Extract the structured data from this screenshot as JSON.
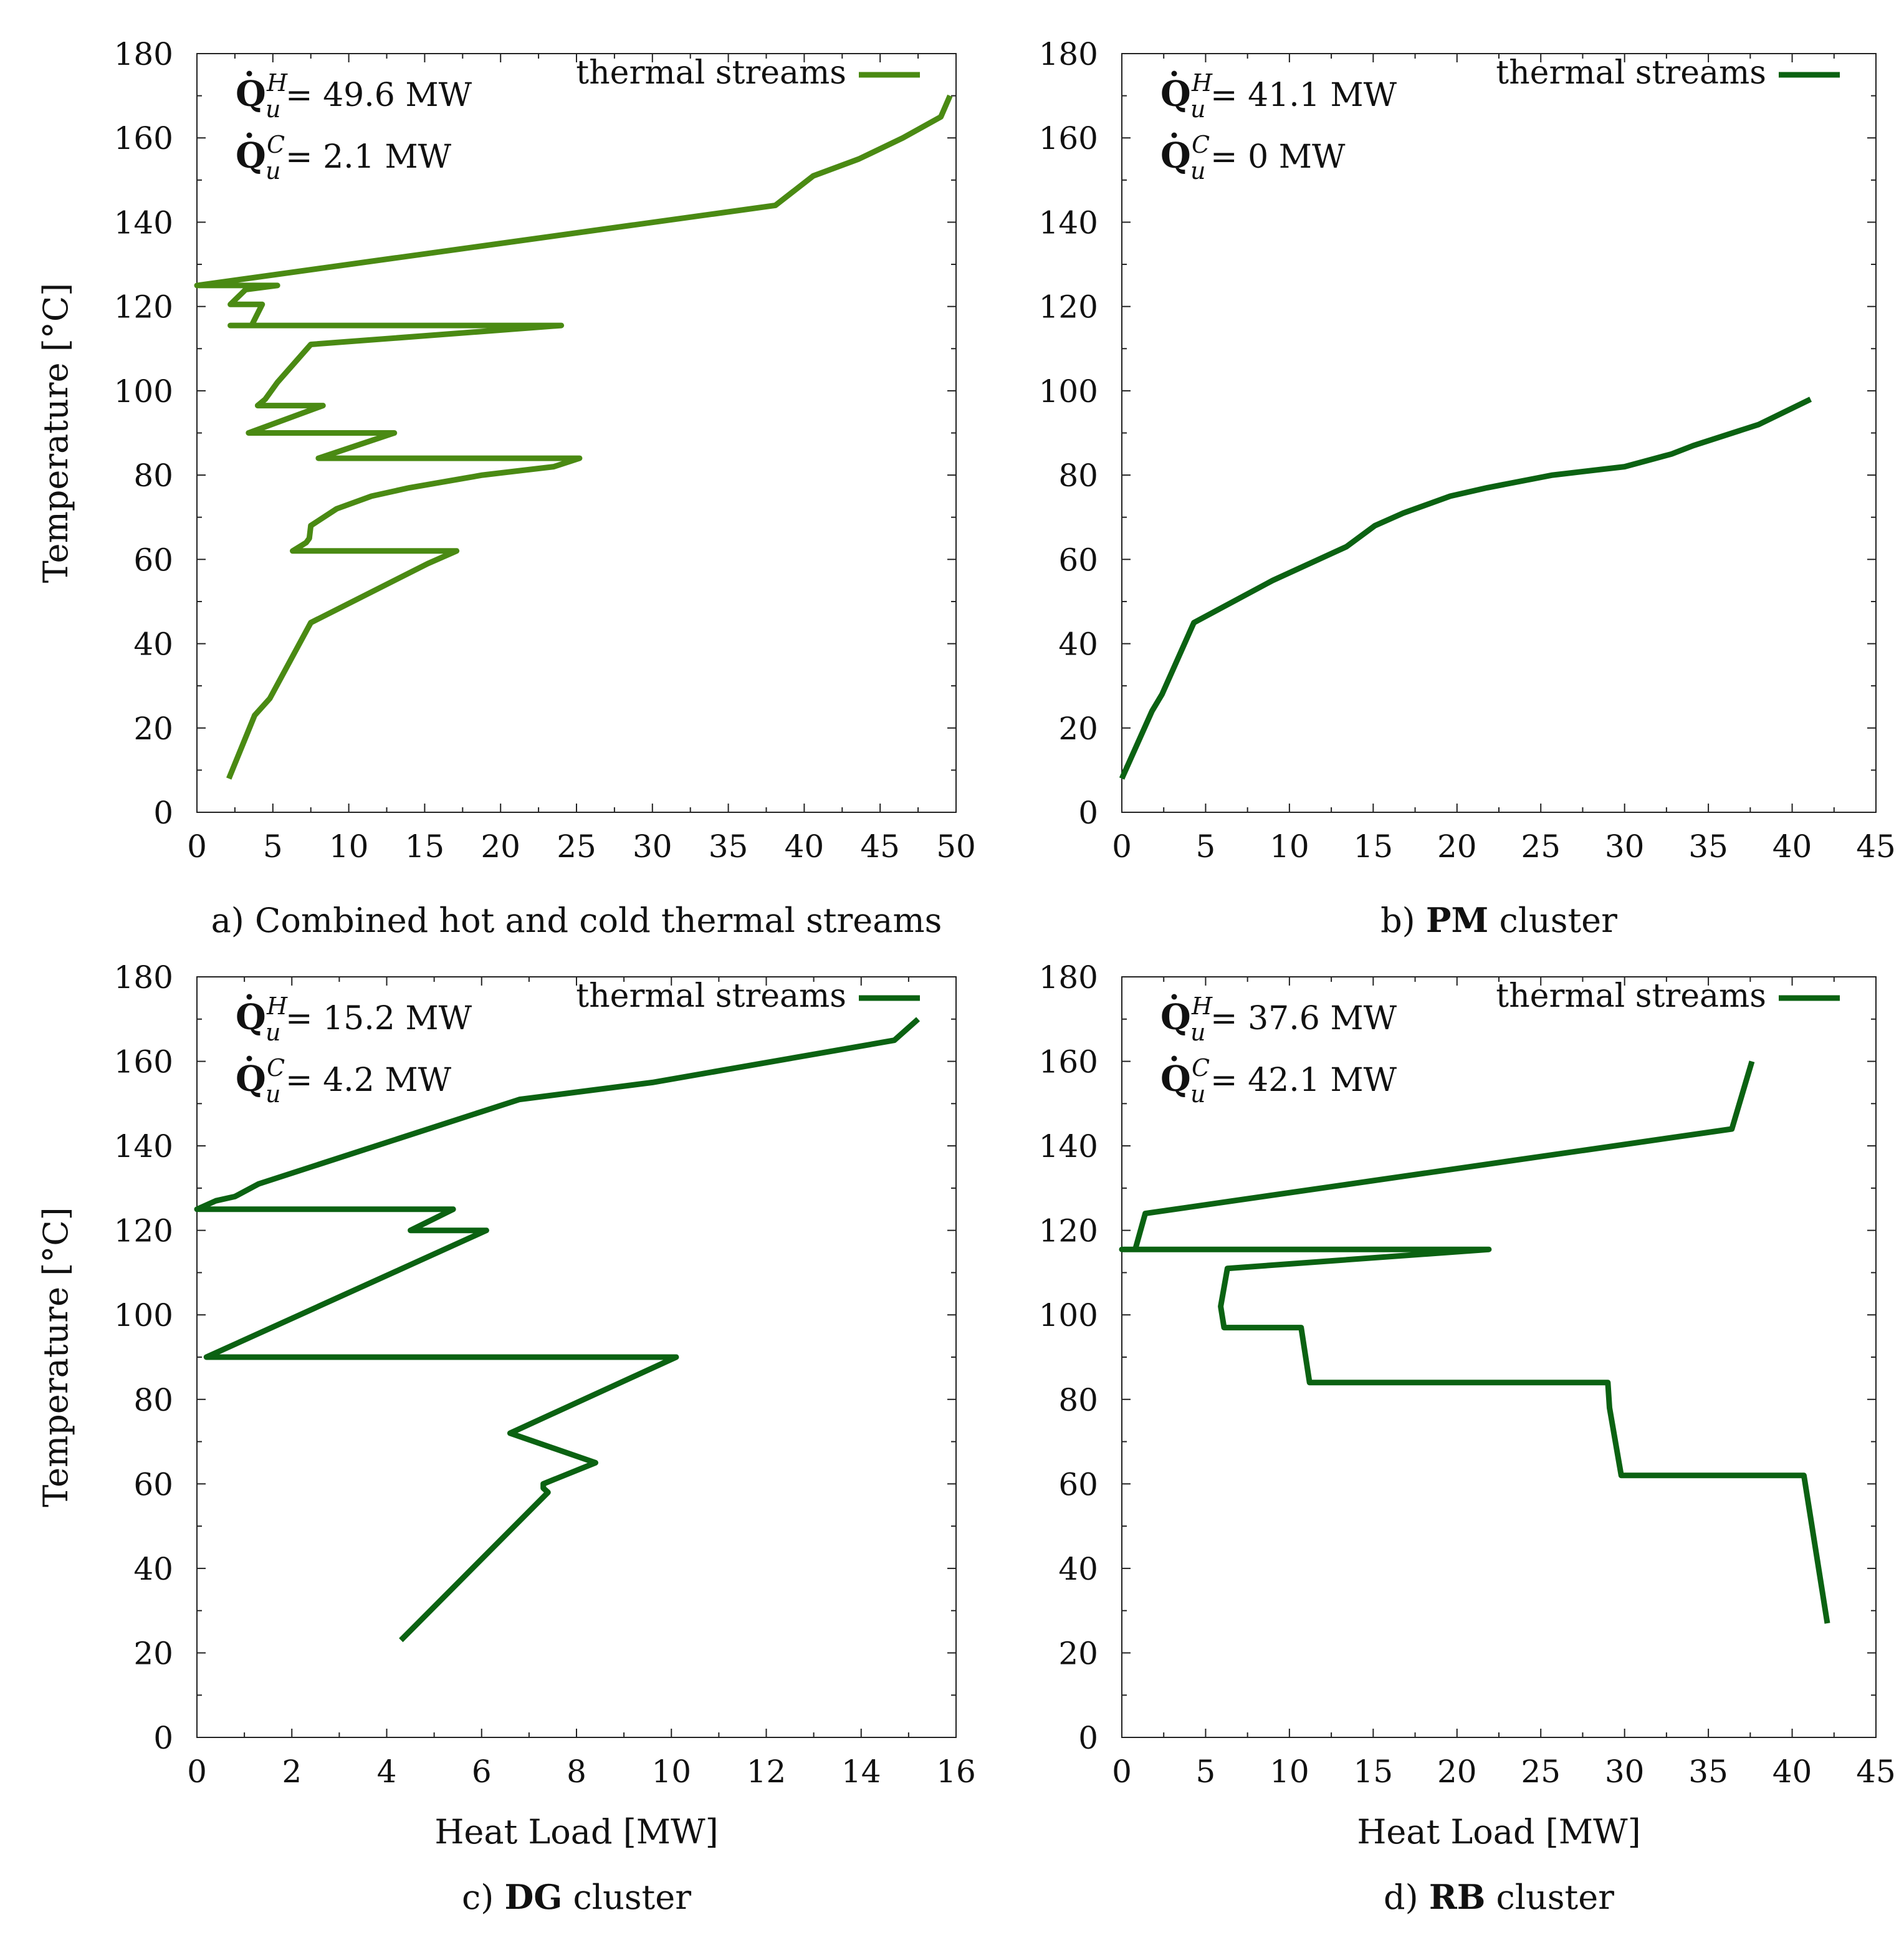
{
  "chart_data": [
    {
      "id": "a",
      "type": "line",
      "caption_prefix": "a)",
      "caption_bold": "",
      "caption_text": " Combined hot and cold thermal streams",
      "xlabel": "",
      "ylabel": "Temperature [°C]",
      "xlim": [
        0,
        50
      ],
      "ylim": [
        0,
        180
      ],
      "xticks": [
        0,
        5,
        10,
        15,
        20,
        25,
        30,
        35,
        40,
        45,
        50
      ],
      "yticks": [
        0,
        20,
        40,
        60,
        80,
        100,
        120,
        140,
        160,
        180
      ],
      "legend": "thermal streams",
      "legend_position": "top-right",
      "color": "#4a8a13",
      "annotations": [
        {
          "sym": "Q",
          "sup": "H",
          "sub": "u",
          "text": " = 49.6 MW"
        },
        {
          "sym": "Q",
          "sup": "C",
          "sub": "u",
          "text": " = 2.1 MW"
        }
      ],
      "series": [
        {
          "name": "thermal streams",
          "x": [
            2.1,
            3.8,
            4.8,
            7.5,
            15.2,
            17.1,
            6.3,
            7.2,
            7.4,
            7.5,
            9.2,
            11.5,
            14,
            18.8,
            23.5,
            25.2,
            8,
            10.5,
            13,
            3.4,
            8.3,
            4.2,
            8.3,
            4,
            4.5,
            5.3,
            7.5,
            24,
            2.2,
            3.6,
            4.3,
            2.2,
            3.2,
            5.3,
            0,
            38.1,
            40.6,
            43.6,
            46.5,
            49,
            49.6
          ],
          "y": [
            8,
            23,
            27,
            45,
            59,
            62,
            62,
            64,
            65,
            68,
            72,
            75,
            77,
            80,
            82,
            84,
            84,
            87,
            90,
            90,
            96.5,
            96.5,
            96.5,
            96.5,
            98,
            102,
            111,
            115.5,
            115.5,
            115.5,
            120.5,
            120.5,
            124,
            125,
            125,
            144,
            151,
            155,
            160,
            165,
            170
          ]
        }
      ]
    },
    {
      "id": "b",
      "type": "line",
      "caption_prefix": "b)",
      "caption_bold": "PM",
      "caption_text": " cluster",
      "xlabel": "",
      "ylabel": "",
      "xlim": [
        0,
        45
      ],
      "ylim": [
        0,
        180
      ],
      "xticks": [
        0,
        5,
        10,
        15,
        20,
        25,
        30,
        35,
        40,
        45
      ],
      "yticks": [
        0,
        20,
        40,
        60,
        80,
        100,
        120,
        140,
        160,
        180
      ],
      "legend": "thermal streams",
      "legend_position": "top-right",
      "color": "#0b6212",
      "annotations": [
        {
          "sym": "Q",
          "sup": "H",
          "sub": "u",
          "text": " = 41.1 MW"
        },
        {
          "sym": "Q",
          "sup": "C",
          "sub": "u",
          "text": " = 0 MW"
        }
      ],
      "series": [
        {
          "name": "thermal streams",
          "x": [
            0,
            1.8,
            2.4,
            4.3,
            9,
            13.4,
            15.1,
            16.8,
            19.6,
            21.8,
            25.7,
            30,
            32.8,
            34.1,
            38,
            41.1
          ],
          "y": [
            8,
            24,
            28,
            45,
            55,
            63,
            68,
            71,
            75,
            77,
            80,
            82,
            85,
            87,
            92,
            98
          ]
        }
      ]
    },
    {
      "id": "c",
      "type": "line",
      "caption_prefix": "c)",
      "caption_bold": "DG",
      "caption_text": " cluster",
      "xlabel": "Heat Load [MW]",
      "ylabel": "Temperature [°C]",
      "xlim": [
        0,
        16
      ],
      "ylim": [
        0,
        180
      ],
      "xticks": [
        0,
        2,
        4,
        6,
        8,
        10,
        12,
        14,
        16
      ],
      "yticks": [
        0,
        20,
        40,
        60,
        80,
        100,
        120,
        140,
        160,
        180
      ],
      "legend": "thermal streams",
      "legend_position": "top-right",
      "color": "#0b6212",
      "annotations": [
        {
          "sym": "Q",
          "sup": "H",
          "sub": "u",
          "text": " = 15.2 MW"
        },
        {
          "sym": "Q",
          "sup": "C",
          "sub": "u",
          "text": " = 4.2 MW"
        }
      ],
      "series": [
        {
          "name": "thermal streams",
          "x": [
            4.3,
            7.4,
            7.3,
            7.3,
            8.4,
            6.6,
            10.1,
            0.2,
            6.1,
            4.5,
            5.4,
            0,
            0.4,
            0.8,
            1.3,
            6.8,
            9.6,
            14.7,
            15.2
          ],
          "y": [
            23,
            58,
            59,
            60,
            65,
            72,
            90,
            90,
            120,
            120,
            125,
            125,
            127,
            128,
            131,
            151,
            155,
            165,
            170
          ]
        }
      ]
    },
    {
      "id": "d",
      "type": "line",
      "caption_prefix": "d)",
      "caption_bold": "RB",
      "caption_text": " cluster",
      "xlabel": "Heat Load [MW]",
      "ylabel": "",
      "xlim": [
        0,
        45
      ],
      "ylim": [
        0,
        180
      ],
      "xticks": [
        0,
        5,
        10,
        15,
        20,
        25,
        30,
        35,
        40,
        45
      ],
      "yticks": [
        0,
        20,
        40,
        60,
        80,
        100,
        120,
        140,
        160,
        180
      ],
      "legend": "thermal streams",
      "legend_position": "top-right",
      "color": "#0b6212",
      "annotations": [
        {
          "sym": "Q",
          "sup": "H",
          "sub": "u",
          "text": " = 37.6 MW"
        },
        {
          "sym": "Q",
          "sup": "C",
          "sub": "u",
          "text": " = 42.1 MW"
        }
      ],
      "series": [
        {
          "name": "thermal streams",
          "x": [
            42.1,
            40.7,
            29.8,
            29.1,
            29,
            11.2,
            10.7,
            6.1,
            5.9,
            6.3,
            21.9,
            0,
            0.8,
            1.4,
            36.4,
            37.6
          ],
          "y": [
            27,
            62,
            62,
            78,
            84,
            84,
            97,
            97,
            102,
            111,
            115.5,
            115.5,
            115.5,
            124,
            144,
            160
          ]
        }
      ]
    }
  ]
}
